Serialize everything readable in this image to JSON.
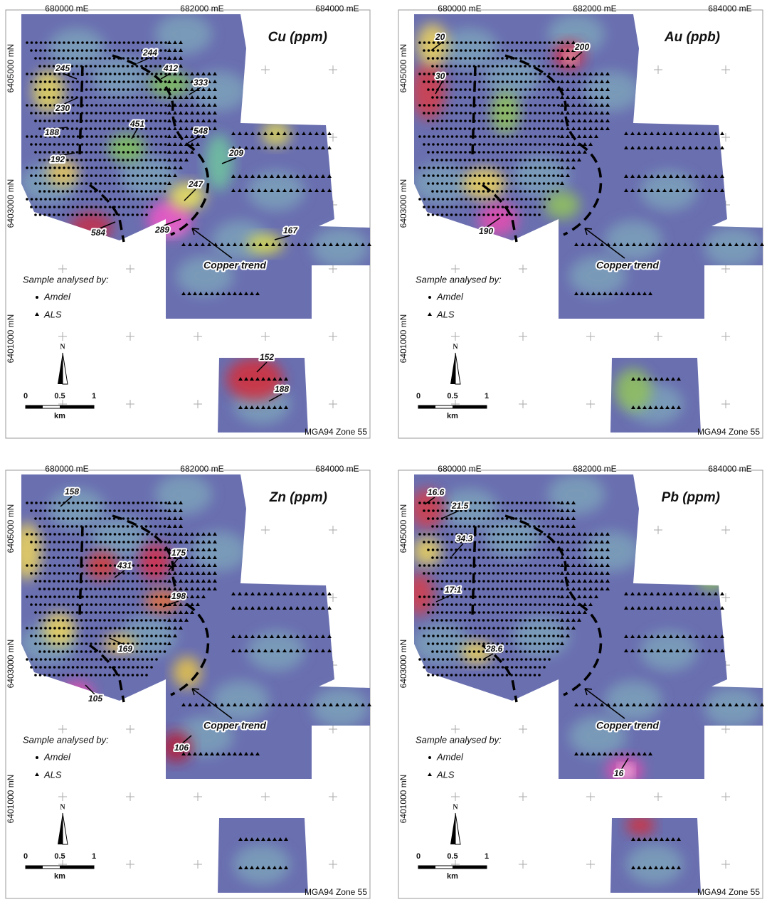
{
  "panels": [
    {
      "title": "Cu (ppm)",
      "easting_labels": [
        "680000 mE",
        "682000 mE",
        "684000 mE"
      ],
      "northing_labels": [
        "6405000 mN",
        "6403000 mN",
        "6401000 mN"
      ],
      "annotations": [
        244,
        245,
        412,
        333,
        230,
        451,
        188,
        548,
        192,
        209,
        247,
        584,
        289,
        167,
        152,
        188
      ],
      "trend_label": "Copper trend",
      "legend": {
        "heading": "Sample analysed by:",
        "items": [
          "Amdel",
          "ALS"
        ]
      },
      "north": "N",
      "scale": {
        "ticks": [
          0,
          0.5,
          1
        ],
        "unit": "km"
      },
      "datum": "MGA94 Zone 55"
    },
    {
      "title": "Au (ppb)",
      "easting_labels": [
        "680000 mE",
        "682000 mE",
        "684000 mE"
      ],
      "northing_labels": [
        "6405000 mN",
        "6403000 mN",
        "6401000 mN"
      ],
      "annotations": [
        20,
        200,
        30,
        190
      ],
      "trend_label": "Copper trend",
      "legend": {
        "heading": "Sample analysed by:",
        "items": [
          "Amdel",
          "ALS"
        ]
      },
      "north": "N",
      "scale": {
        "ticks": [
          0,
          0.5,
          1
        ],
        "unit": "km"
      },
      "datum": "MGA94 Zone 55"
    },
    {
      "title": "Zn (ppm)",
      "easting_labels": [
        "680000 mE",
        "682000 mE",
        "684000 mE"
      ],
      "northing_labels": [
        "6405000 mN",
        "6403000 mN",
        "6401000 mN"
      ],
      "annotations": [
        158,
        175,
        431,
        198,
        169,
        105,
        106
      ],
      "trend_label": "Copper trend",
      "legend": {
        "heading": "Sample analysed by:",
        "items": [
          "Amdel",
          "ALS"
        ]
      },
      "north": "N",
      "scale": {
        "ticks": [
          0,
          0.5,
          1
        ],
        "unit": "km"
      },
      "datum": "MGA94 Zone 55"
    },
    {
      "title": "Pb (ppm)",
      "easting_labels": [
        "680000 mE",
        "682000 mE",
        "684000 mE"
      ],
      "northing_labels": [
        "6405000 mN",
        "6403000 mN",
        "6401000 mN"
      ],
      "annotations": [
        16.6,
        21.5,
        34.3,
        17.1,
        28.6,
        16
      ],
      "trend_label": "Copper trend",
      "legend": {
        "heading": "Sample analysed by:",
        "items": [
          "Amdel",
          "ALS"
        ]
      },
      "north": "N",
      "scale": {
        "ticks": [
          0,
          0.5,
          1
        ],
        "unit": "km"
      },
      "datum": "MGA94 Zone 55"
    }
  ]
}
